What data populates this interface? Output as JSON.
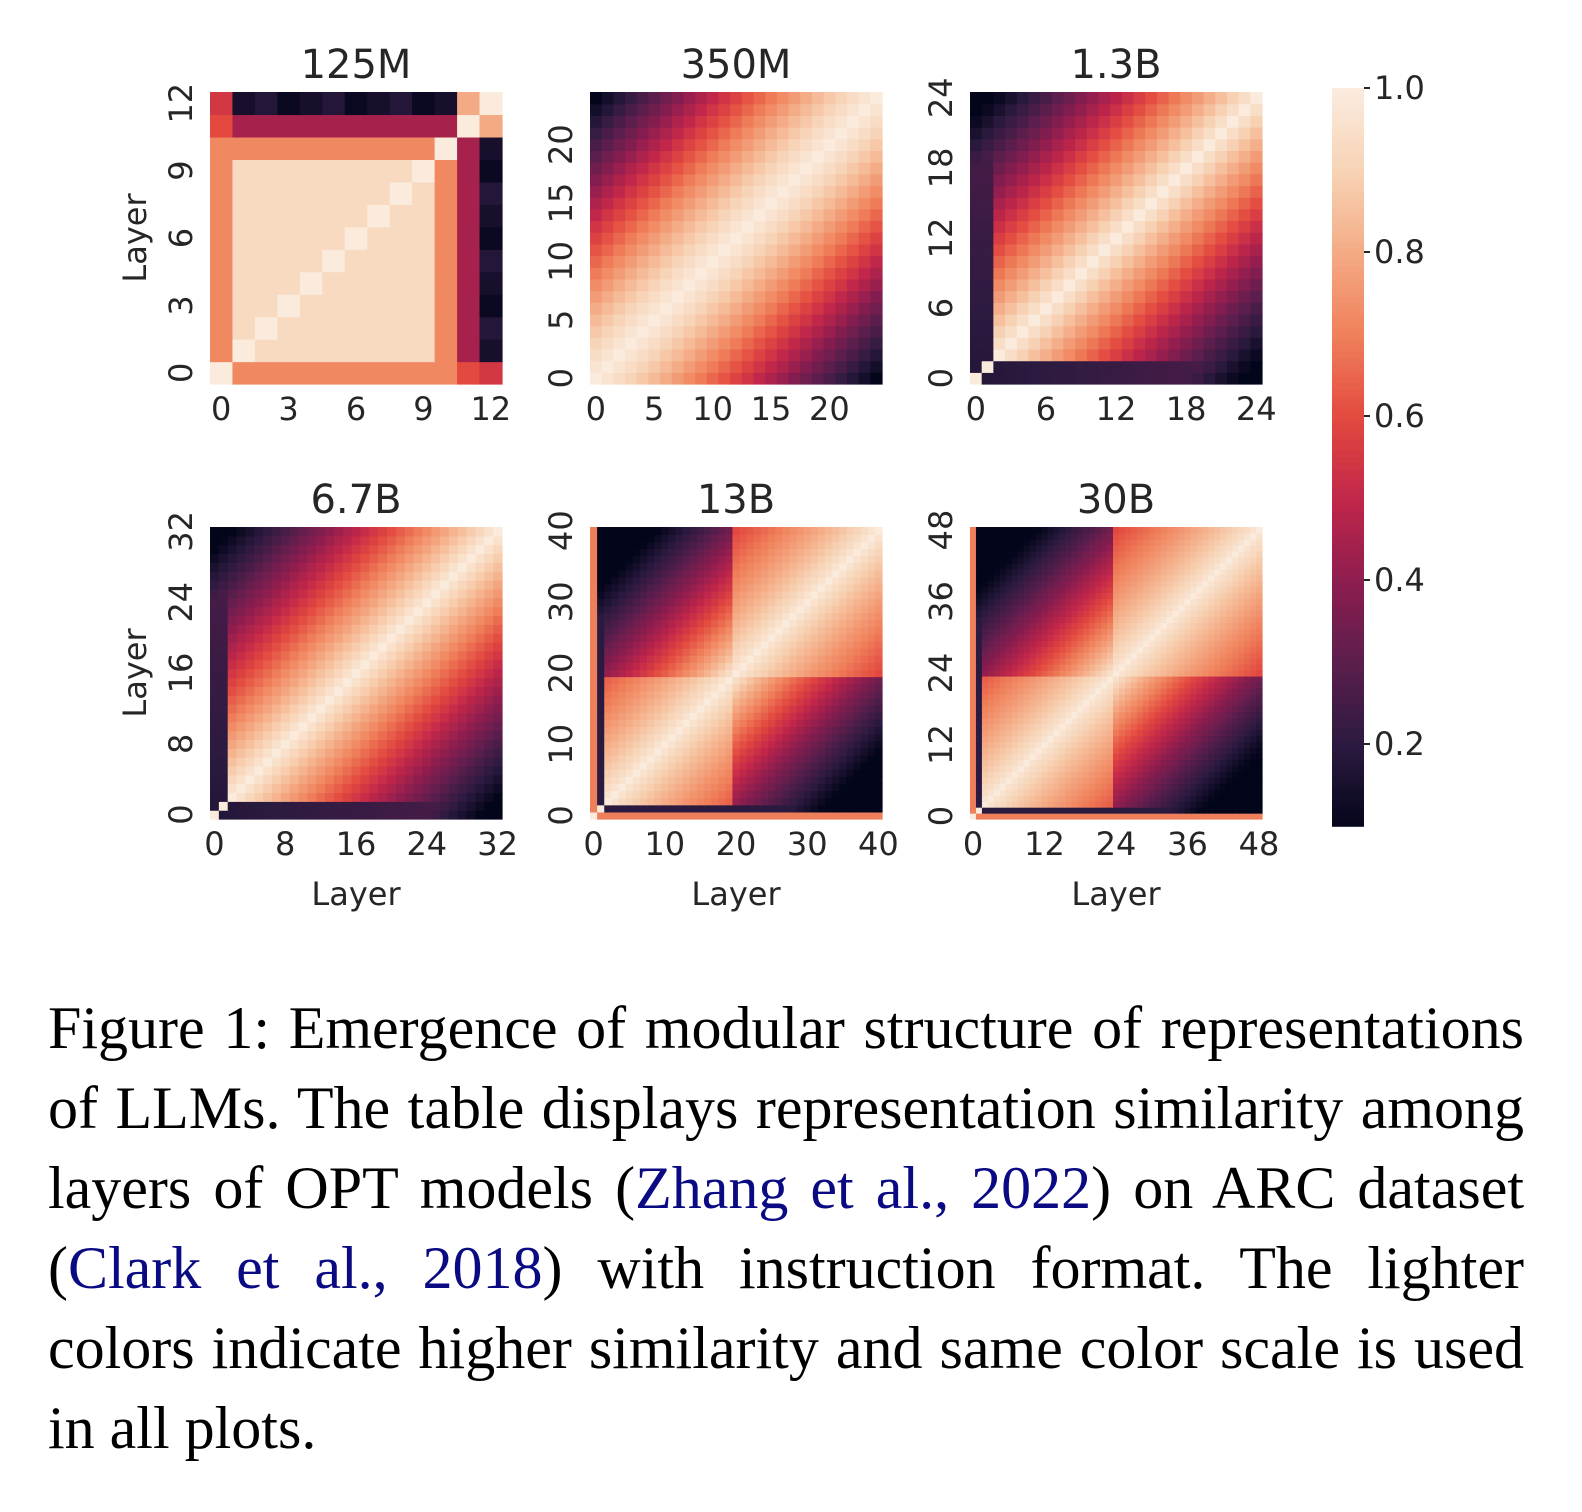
{
  "figure": {
    "number_label": "Figure 1:",
    "caption_parts": [
      {
        "text": "Emergence of modular structure of representations of LLMs. The table displays representation similarity among layers of OPT models (",
        "cite": false
      },
      {
        "text": "Zhang et al., 2022",
        "cite": true
      },
      {
        "text": ") on ARC dataset (",
        "cite": false
      },
      {
        "text": "Clark et al., 2018",
        "cite": true
      },
      {
        "text": ") with instruction format. The lighter colors indicate higher similarity and same color scale is used in all plots.",
        "cite": false
      }
    ]
  },
  "chart_data": [
    {
      "type": "heatmap",
      "title": "125M",
      "n": 13,
      "ticks": [
        0,
        3,
        6,
        9,
        12
      ],
      "xlabel": "",
      "ylabel": "Layer",
      "pattern": "block",
      "blocks": [
        [
          0,
          0
        ],
        [
          1,
          9
        ],
        [
          10,
          10
        ],
        [
          11,
          11
        ],
        [
          12,
          12
        ]
      ]
    },
    {
      "type": "heatmap",
      "title": "350M",
      "n": 25,
      "ticks": [
        0,
        5,
        10,
        15,
        20
      ],
      "xlabel": "",
      "ylabel": "",
      "pattern": "diagonal-decay"
    },
    {
      "type": "heatmap",
      "title": "1.3B",
      "n": 25,
      "ticks": [
        0,
        6,
        12,
        18,
        24
      ],
      "xlabel": "",
      "ylabel": "",
      "pattern": "diagonal-decay-dark-early"
    },
    {
      "type": "heatmap",
      "title": "6.7B",
      "n": 33,
      "ticks": [
        0,
        8,
        16,
        24,
        32
      ],
      "xlabel": "Layer",
      "ylabel": "Layer",
      "pattern": "diagonal-decay-dark-early"
    },
    {
      "type": "heatmap",
      "title": "13B",
      "n": 41,
      "ticks": [
        0,
        10,
        20,
        30,
        40
      ],
      "xlabel": "Layer",
      "ylabel": "",
      "pattern": "modular"
    },
    {
      "type": "heatmap",
      "title": "30B",
      "n": 49,
      "ticks": [
        0,
        12,
        24,
        36,
        48
      ],
      "xlabel": "Layer",
      "ylabel": "",
      "pattern": "modular"
    }
  ],
  "colorbar": {
    "ticks": [
      0.2,
      0.4,
      0.6,
      0.8,
      1.0
    ],
    "range": [
      0.1,
      1.0
    ],
    "colormap": "rocket",
    "stops": [
      "#03051a",
      "#2b1a3f",
      "#5a1e4d",
      "#8c1d4f",
      "#c0264a",
      "#e3493f",
      "#ef7f5a",
      "#f4aa84",
      "#f7d2b4",
      "#faebdd"
    ]
  }
}
